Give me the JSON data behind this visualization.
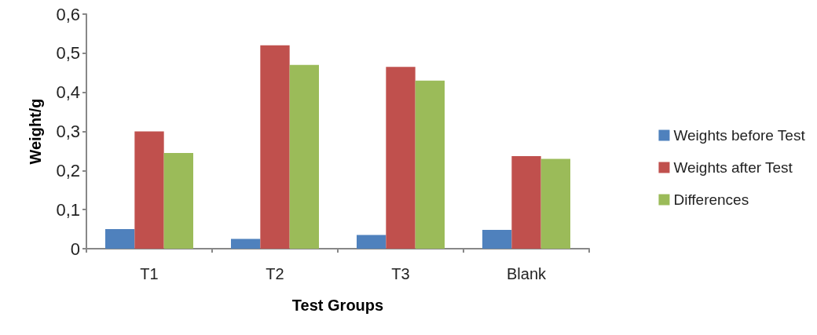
{
  "chart_data": {
    "type": "bar",
    "xlabel": "Test Groups",
    "ylabel": "Weight/g",
    "categories": [
      "T1",
      "T2",
      "T3",
      "Blank"
    ],
    "series": [
      {
        "name": "Weights before Test",
        "color": "#4f81bd",
        "values": [
          0.05,
          0.025,
          0.035,
          0.048
        ]
      },
      {
        "name": "Weights after Test",
        "color": "#c0504d",
        "values": [
          0.3,
          0.52,
          0.465,
          0.237
        ]
      },
      {
        "name": "Differences",
        "color": "#9bbb59",
        "values": [
          0.245,
          0.47,
          0.43,
          0.23
        ]
      }
    ],
    "ylim": [
      0,
      0.6
    ],
    "yticks": [
      0,
      {
        "value": 0.1,
        "label": "0,1"
      },
      {
        "value": 0.2,
        "label": "0,2"
      },
      {
        "value": 0.3,
        "label": "0,3"
      },
      {
        "value": 0.4,
        "label": "0,4"
      },
      {
        "value": 0.5,
        "label": "0,5"
      },
      {
        "value": 0.6,
        "label": "0,6"
      }
    ],
    "grid": false,
    "legend": "right"
  }
}
